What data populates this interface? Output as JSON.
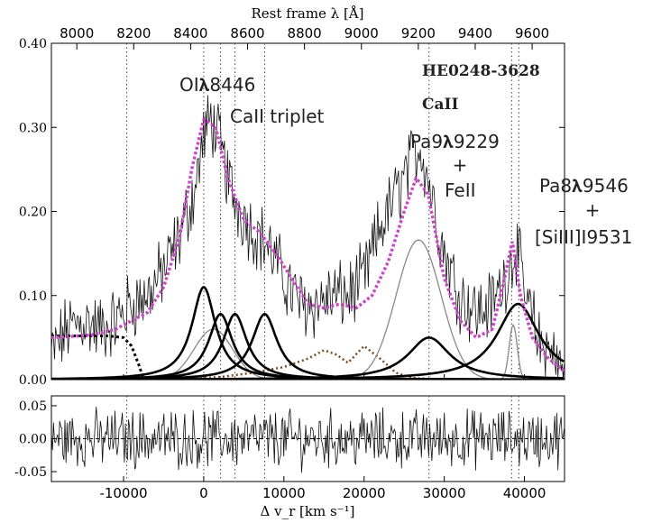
{
  "chart_data": [
    {
      "type": "line",
      "panel": "main",
      "title": "",
      "top_axis_label": "Rest frame λ [Å]",
      "top_ticks": [
        "8000",
        "8200",
        "8400",
        "8600",
        "8800",
        "9000",
        "9200",
        "9400",
        "9600"
      ],
      "top_tick_values": [
        8000,
        8200,
        8400,
        8600,
        8800,
        9000,
        9200,
        9400,
        9600
      ],
      "y_ticks": [
        "0.00",
        "0.10",
        "0.20",
        "0.30",
        "0.40"
      ],
      "y_tick_values": [
        0.0,
        0.1,
        0.2,
        0.3,
        0.4
      ],
      "ylim": [
        0,
        0.4
      ],
      "xlim": [
        -19000,
        45000
      ],
      "vertical_dotted_lines_x": [
        -9600,
        0,
        2100,
        3900,
        7600,
        28100,
        38400,
        39300
      ],
      "annotations": [
        {
          "text": "HE0248-3628",
          "style": "serif"
        },
        {
          "text": "CaII",
          "style": "serif"
        },
        {
          "text": "OI𝛌8446",
          "style": "sans"
        },
        {
          "text": "CaII triplet",
          "style": "sans"
        },
        {
          "text": "Pa9𝛌9229",
          "style": "sans"
        },
        {
          "text": "+",
          "style": "sans"
        },
        {
          "text": "FeII",
          "style": "sans"
        },
        {
          "text": "Pa8𝛌9546",
          "style": "sans"
        },
        {
          "text": "+",
          "style": "sans"
        },
        {
          "text": "[SiIII]I9531",
          "style": "sans"
        }
      ],
      "series": [
        {
          "role": "observed spectrum",
          "color": "#000000",
          "x": [
            -19000,
            -17000,
            -15000,
            -13000,
            -11000,
            -9000,
            -7000,
            -5000,
            -3000,
            -1000,
            0,
            1000,
            2000,
            3000,
            4000,
            6000,
            8000,
            10000,
            12000,
            14000,
            16000,
            18000,
            20000,
            22000,
            24000,
            26000,
            27000,
            28000,
            30000,
            32000,
            34000,
            36000,
            38000,
            39000,
            40000,
            42000,
            44000,
            45000
          ],
          "y": [
            0.03,
            0.06,
            0.07,
            0.06,
            0.07,
            0.09,
            0.1,
            0.13,
            0.17,
            0.23,
            0.29,
            0.31,
            0.28,
            0.24,
            0.21,
            0.18,
            0.16,
            0.12,
            0.09,
            0.09,
            0.1,
            0.1,
            0.12,
            0.18,
            0.22,
            0.26,
            0.28,
            0.24,
            0.15,
            0.1,
            0.08,
            0.09,
            0.13,
            0.16,
            0.1,
            0.04,
            0.02,
            0.0
          ]
        },
        {
          "role": "total fit",
          "color": "#cc44cc",
          "style": "dotted",
          "x": [
            -19000,
            -14000,
            -11000,
            -9000,
            -7000,
            -5000,
            -3000,
            -1500,
            0,
            1500,
            3000,
            5000,
            7000,
            9000,
            11000,
            13000,
            15000,
            17000,
            19000,
            21000,
            23000,
            25000,
            26500,
            28000,
            30000,
            32000,
            34000,
            36000,
            37500,
            38500,
            39500,
            41000,
            43000,
            45000
          ],
          "y": [
            0.05,
            0.053,
            0.06,
            0.07,
            0.08,
            0.11,
            0.17,
            0.25,
            0.31,
            0.3,
            0.24,
            0.19,
            0.175,
            0.15,
            0.12,
            0.09,
            0.085,
            0.09,
            0.085,
            0.1,
            0.14,
            0.2,
            0.24,
            0.22,
            0.12,
            0.07,
            0.05,
            0.06,
            0.12,
            0.165,
            0.1,
            0.05,
            0.025,
            0.01
          ]
        },
        {
          "role": "OI 8446 component",
          "color": "#000000",
          "shape": "lorentzian",
          "center": 0,
          "amp": 0.11,
          "width": 1800
        },
        {
          "role": "CaII triplet 8498",
          "color": "#000000",
          "shape": "lorentzian",
          "center": 2100,
          "amp": 0.078,
          "width": 1800
        },
        {
          "role": "CaII triplet 8542",
          "color": "#000000",
          "shape": "lorentzian",
          "center": 3900,
          "amp": 0.078,
          "width": 1800
        },
        {
          "role": "CaII triplet 8662",
          "color": "#000000",
          "shape": "lorentzian",
          "center": 7600,
          "amp": 0.078,
          "width": 1900
        },
        {
          "role": "Pa9 9229",
          "color": "#000000",
          "shape": "lorentzian",
          "center": 28100,
          "amp": 0.05,
          "width": 3200
        },
        {
          "role": "Pa8 9546",
          "color": "#000000",
          "shape": "lorentzian",
          "center": 39200,
          "amp": 0.09,
          "width": 3200
        },
        {
          "role": "broad component",
          "color": "#888888",
          "shape": "gaussian",
          "center": 26800,
          "amp": 0.166,
          "width": 2800
        },
        {
          "role": "OI broad component",
          "color": "#888888",
          "shape": "gaussian",
          "center": 1200,
          "amp": 0.06,
          "width": 2400
        },
        {
          "role": "narrow component",
          "color": "#888888",
          "shape": "gaussian",
          "center": 38600,
          "amp": 0.065,
          "width": 500
        },
        {
          "role": "FeII template",
          "color": "#7a4a1c",
          "style": "dotted",
          "x": [
            -19000,
            -5000,
            2000,
            6000,
            10000,
            13000,
            15000,
            16500,
            18000,
            20000,
            22000,
            24000,
            26000,
            30000,
            45000
          ],
          "y": [
            0.0,
            0.0,
            0.003,
            0.008,
            0.015,
            0.025,
            0.035,
            0.03,
            0.02,
            0.04,
            0.025,
            0.008,
            0.002,
            0.0,
            0.0
          ]
        },
        {
          "role": "continuum",
          "color": "#000000",
          "style": "dotted",
          "x": [
            -19000,
            -12000,
            -10000,
            -9000,
            -8000,
            -7500
          ],
          "y": [
            0.052,
            0.052,
            0.05,
            0.04,
            0.015,
            0.0
          ]
        }
      ]
    },
    {
      "type": "line",
      "panel": "residuals",
      "xlabel": "Δ v_r [km s⁻¹]",
      "x_ticks": [
        "-10000",
        "0",
        "10000",
        "20000",
        "30000",
        "40000"
      ],
      "x_tick_values": [
        -10000,
        0,
        10000,
        20000,
        30000,
        40000
      ],
      "y_ticks": [
        "0.05",
        "0.00",
        "-0.05"
      ],
      "y_tick_values": [
        0.05,
        0.0,
        -0.05
      ],
      "ylim": [
        -0.065,
        0.065
      ],
      "zero_line_style": "dashed",
      "series": [
        {
          "role": "residuals",
          "color": "#000000",
          "amplitude": 0.035
        }
      ]
    }
  ],
  "colors": {
    "spectrum": "#000000",
    "fit": "#cc44cc",
    "feii": "#7a4a1c",
    "component_grey": "#888888"
  }
}
